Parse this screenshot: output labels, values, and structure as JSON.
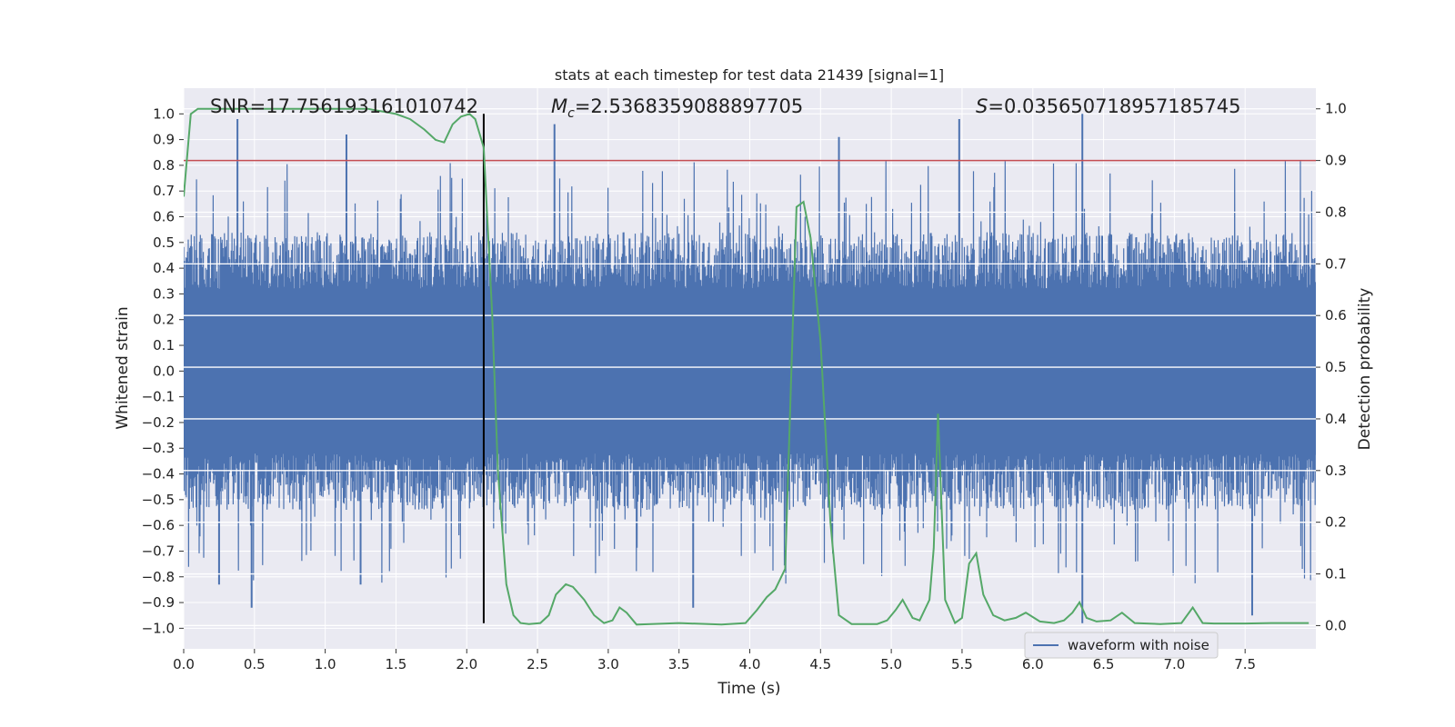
{
  "chart_data": {
    "type": "line",
    "title": "stats at each timestep for test data 21439 [signal=1]",
    "xlabel": "Time (s)",
    "ylabel": "Whitened strain",
    "ylabel_right": "Detection probability",
    "xlim": [
      0,
      8
    ],
    "ylim": [
      -1.08,
      1.1
    ],
    "ylim_right": [
      -0.045,
      1.04
    ],
    "grid": true,
    "legend_position": "bottom-right",
    "x_ticks": [
      0.0,
      0.5,
      1.0,
      1.5,
      2.0,
      2.5,
      3.0,
      3.5,
      4.0,
      4.5,
      5.0,
      5.5,
      6.0,
      6.5,
      7.0,
      7.5
    ],
    "x_tick_labels": [
      "0.0",
      "0.5",
      "1.0",
      "1.5",
      "2.0",
      "2.5",
      "3.0",
      "3.5",
      "4.0",
      "4.5",
      "5.0",
      "5.5",
      "6.0",
      "6.5",
      "7.0",
      "7.5"
    ],
    "y_ticks": [
      -1.0,
      -0.9,
      -0.8,
      -0.7,
      -0.6,
      -0.5,
      -0.4,
      -0.3,
      -0.2,
      -0.1,
      0.0,
      0.1,
      0.2,
      0.3,
      0.4,
      0.5,
      0.6,
      0.7,
      0.8,
      0.9,
      1.0
    ],
    "y_tick_labels": [
      "−1.0",
      "−0.9",
      "−0.8",
      "−0.7",
      "−0.6",
      "−0.5",
      "−0.4",
      "−0.3",
      "−0.2",
      "−0.1",
      "0.0",
      "0.1",
      "0.2",
      "0.3",
      "0.4",
      "0.5",
      "0.6",
      "0.7",
      "0.8",
      "0.9",
      "1.0"
    ],
    "y_right_ticks": [
      0.0,
      0.1,
      0.2,
      0.3,
      0.4,
      0.5,
      0.6,
      0.7,
      0.8,
      0.9,
      1.0
    ],
    "y_right_tick_labels": [
      "0.0",
      "0.1",
      "0.2",
      "0.3",
      "0.4",
      "0.5",
      "0.6",
      "0.7",
      "0.8",
      "0.9",
      "1.0"
    ],
    "annotations": {
      "snr": "SNR=17.756193161010742",
      "mc_symbol": "M",
      "mc_subscript": "c",
      "mc_value": "=2.5368359088897705",
      "s_symbol": "S",
      "s_value": "=0.035650718957185745"
    },
    "threshold_line": {
      "y_right": 0.9,
      "color": "#c44e52"
    },
    "marker_line": {
      "x": 2.12,
      "color": "#000000"
    },
    "series": [
      {
        "name": "waveform with noise",
        "color": "#4c72b0",
        "description_kind": "dense noisy strain oscillation filling roughly -0.5..0.5 with spikes up to about ±1.0",
        "spikes": [
          {
            "x": 0.38,
            "y": 0.98
          },
          {
            "x": 0.48,
            "y": -0.92
          },
          {
            "x": 0.25,
            "y": -0.83
          },
          {
            "x": 1.15,
            "y": 0.92
          },
          {
            "x": 1.25,
            "y": -0.83
          },
          {
            "x": 2.62,
            "y": 0.96
          },
          {
            "x": 3.6,
            "y": -0.92
          },
          {
            "x": 4.63,
            "y": 0.91
          },
          {
            "x": 5.48,
            "y": 0.98
          },
          {
            "x": 6.35,
            "y": 1.0
          },
          {
            "x": 6.35,
            "y": -0.98
          },
          {
            "x": 7.55,
            "y": -0.95
          }
        ]
      },
      {
        "name": "detection probability",
        "color": "#55a868",
        "axis": "right",
        "x": [
          0.0,
          0.05,
          0.1,
          0.2,
          0.3,
          0.5,
          0.8,
          1.0,
          1.3,
          1.5,
          1.6,
          1.7,
          1.78,
          1.84,
          1.9,
          1.96,
          2.02,
          2.06,
          2.12,
          2.18,
          2.22,
          2.28,
          2.33,
          2.38,
          2.44,
          2.52,
          2.58,
          2.63,
          2.7,
          2.75,
          2.83,
          2.9,
          2.97,
          3.03,
          3.08,
          3.13,
          3.2,
          3.3,
          3.5,
          3.8,
          3.97,
          4.05,
          4.12,
          4.18,
          4.25,
          4.33,
          4.38,
          4.43,
          4.5,
          4.57,
          4.63,
          4.72,
          4.9,
          4.97,
          5.03,
          5.08,
          5.15,
          5.2,
          5.27,
          5.3,
          5.33,
          5.38,
          5.45,
          5.5,
          5.55,
          5.6,
          5.65,
          5.72,
          5.8,
          5.88,
          5.95,
          6.05,
          6.15,
          6.22,
          6.28,
          6.33,
          6.38,
          6.45,
          6.55,
          6.63,
          6.72,
          6.9,
          7.05,
          7.13,
          7.2,
          7.28,
          7.5,
          7.7,
          7.95
        ],
        "y": [
          0.83,
          0.99,
          1.0,
          1.0,
          1.0,
          1.0,
          1.0,
          1.0,
          1.0,
          0.99,
          0.98,
          0.96,
          0.94,
          0.935,
          0.97,
          0.985,
          0.99,
          0.98,
          0.925,
          0.6,
          0.3,
          0.08,
          0.02,
          0.005,
          0.003,
          0.005,
          0.02,
          0.06,
          0.08,
          0.075,
          0.05,
          0.02,
          0.005,
          0.01,
          0.035,
          0.025,
          0.002,
          0.003,
          0.005,
          0.002,
          0.005,
          0.03,
          0.055,
          0.07,
          0.11,
          0.81,
          0.82,
          0.75,
          0.55,
          0.2,
          0.02,
          0.003,
          0.003,
          0.01,
          0.03,
          0.05,
          0.015,
          0.01,
          0.05,
          0.15,
          0.41,
          0.05,
          0.005,
          0.015,
          0.12,
          0.14,
          0.06,
          0.02,
          0.01,
          0.015,
          0.025,
          0.008,
          0.005,
          0.01,
          0.025,
          0.045,
          0.015,
          0.008,
          0.01,
          0.025,
          0.005,
          0.003,
          0.005,
          0.035,
          0.005,
          0.004,
          0.004,
          0.005,
          0.005
        ]
      }
    ],
    "legend": [
      "waveform with noise"
    ]
  }
}
